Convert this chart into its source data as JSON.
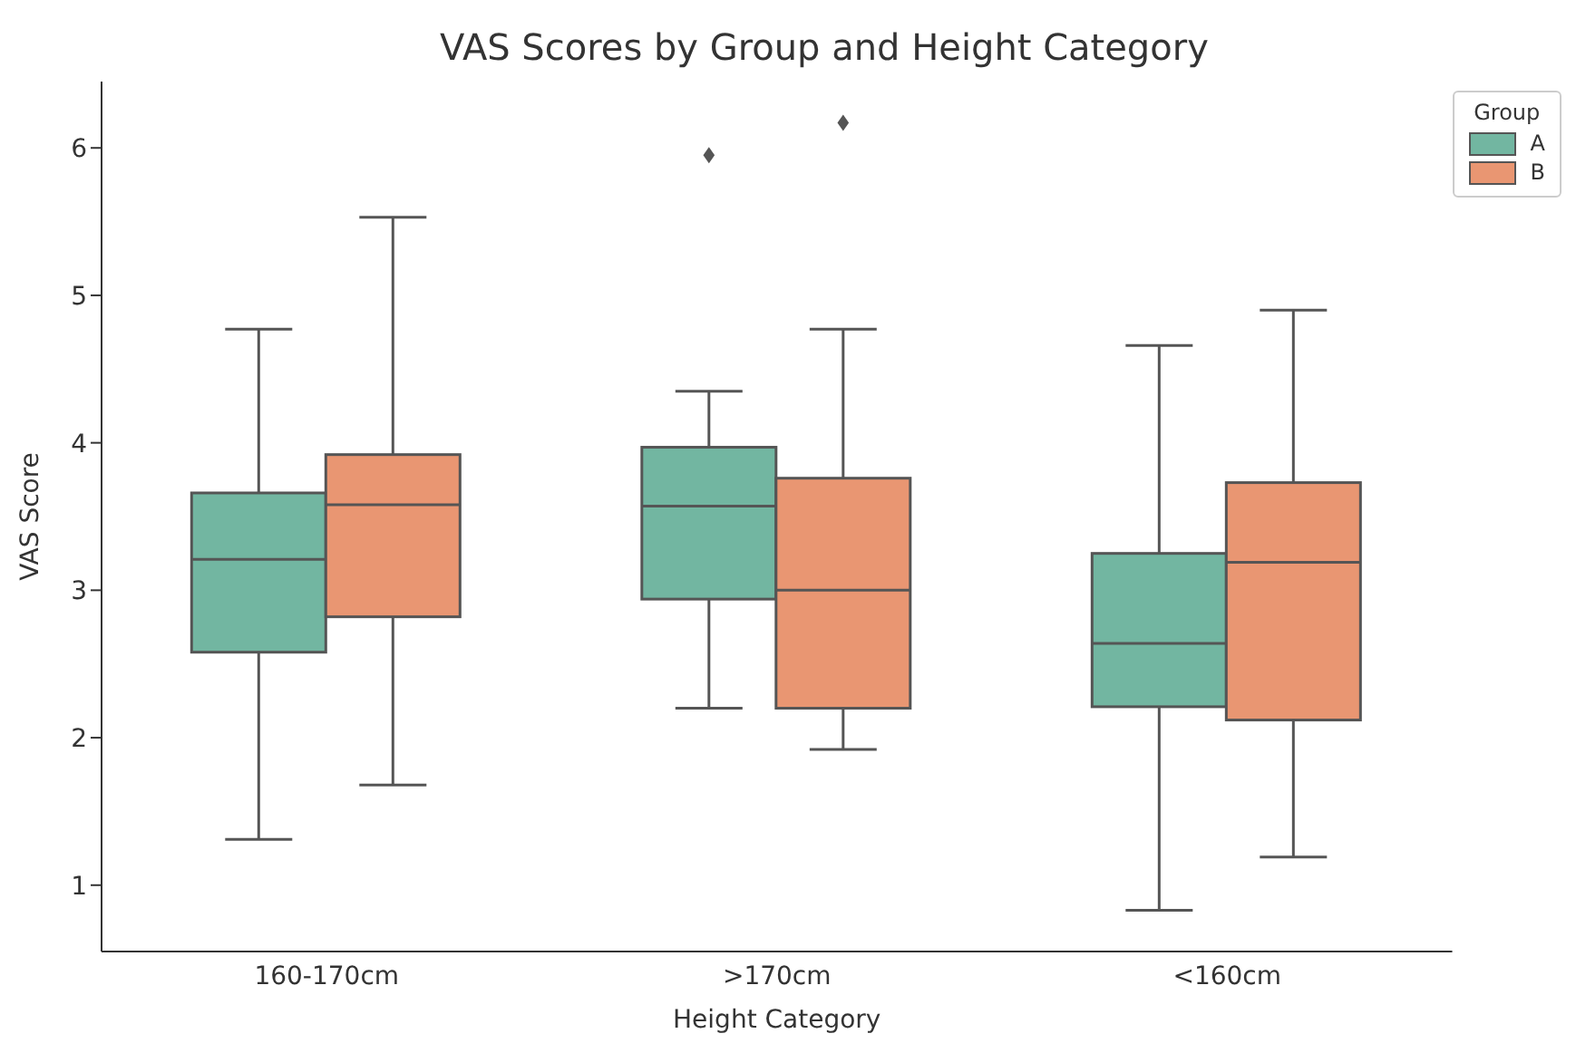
{
  "chart_data": {
    "type": "box",
    "title": "VAS Scores by Group and Height Category",
    "xlabel": "Height Category",
    "ylabel": "VAS Score",
    "legend_title": "Group",
    "legend": "top right",
    "marker": "diamond",
    "categories": [
      "160-170cm",
      ">170cm",
      "<160cm"
    ],
    "ylim": [
      0.55,
      6.45
    ],
    "yticks": [
      1,
      2,
      3,
      4,
      5,
      6
    ],
    "series": [
      {
        "name": "A",
        "color": "#72b6a1",
        "boxes": [
          {
            "low": 1.31,
            "q1": 2.58,
            "median": 3.21,
            "q3": 3.66,
            "high": 4.77
          },
          {
            "low": 2.2,
            "q1": 2.94,
            "median": 3.57,
            "q3": 3.97,
            "high": 4.35,
            "outliers": [
              5.95
            ]
          },
          {
            "low": 0.83,
            "q1": 2.21,
            "median": 2.64,
            "q3": 3.25,
            "high": 4.66
          }
        ]
      },
      {
        "name": "B",
        "color": "#e99672",
        "boxes": [
          {
            "low": 1.68,
            "q1": 2.82,
            "median": 3.58,
            "q3": 3.92,
            "high": 5.53
          },
          {
            "low": 1.92,
            "q1": 2.2,
            "median": 3.0,
            "q3": 3.76,
            "high": 4.77,
            "outliers": [
              6.17
            ]
          },
          {
            "low": 1.19,
            "q1": 2.12,
            "median": 3.19,
            "q3": 3.73,
            "high": 4.9
          }
        ]
      }
    ]
  }
}
